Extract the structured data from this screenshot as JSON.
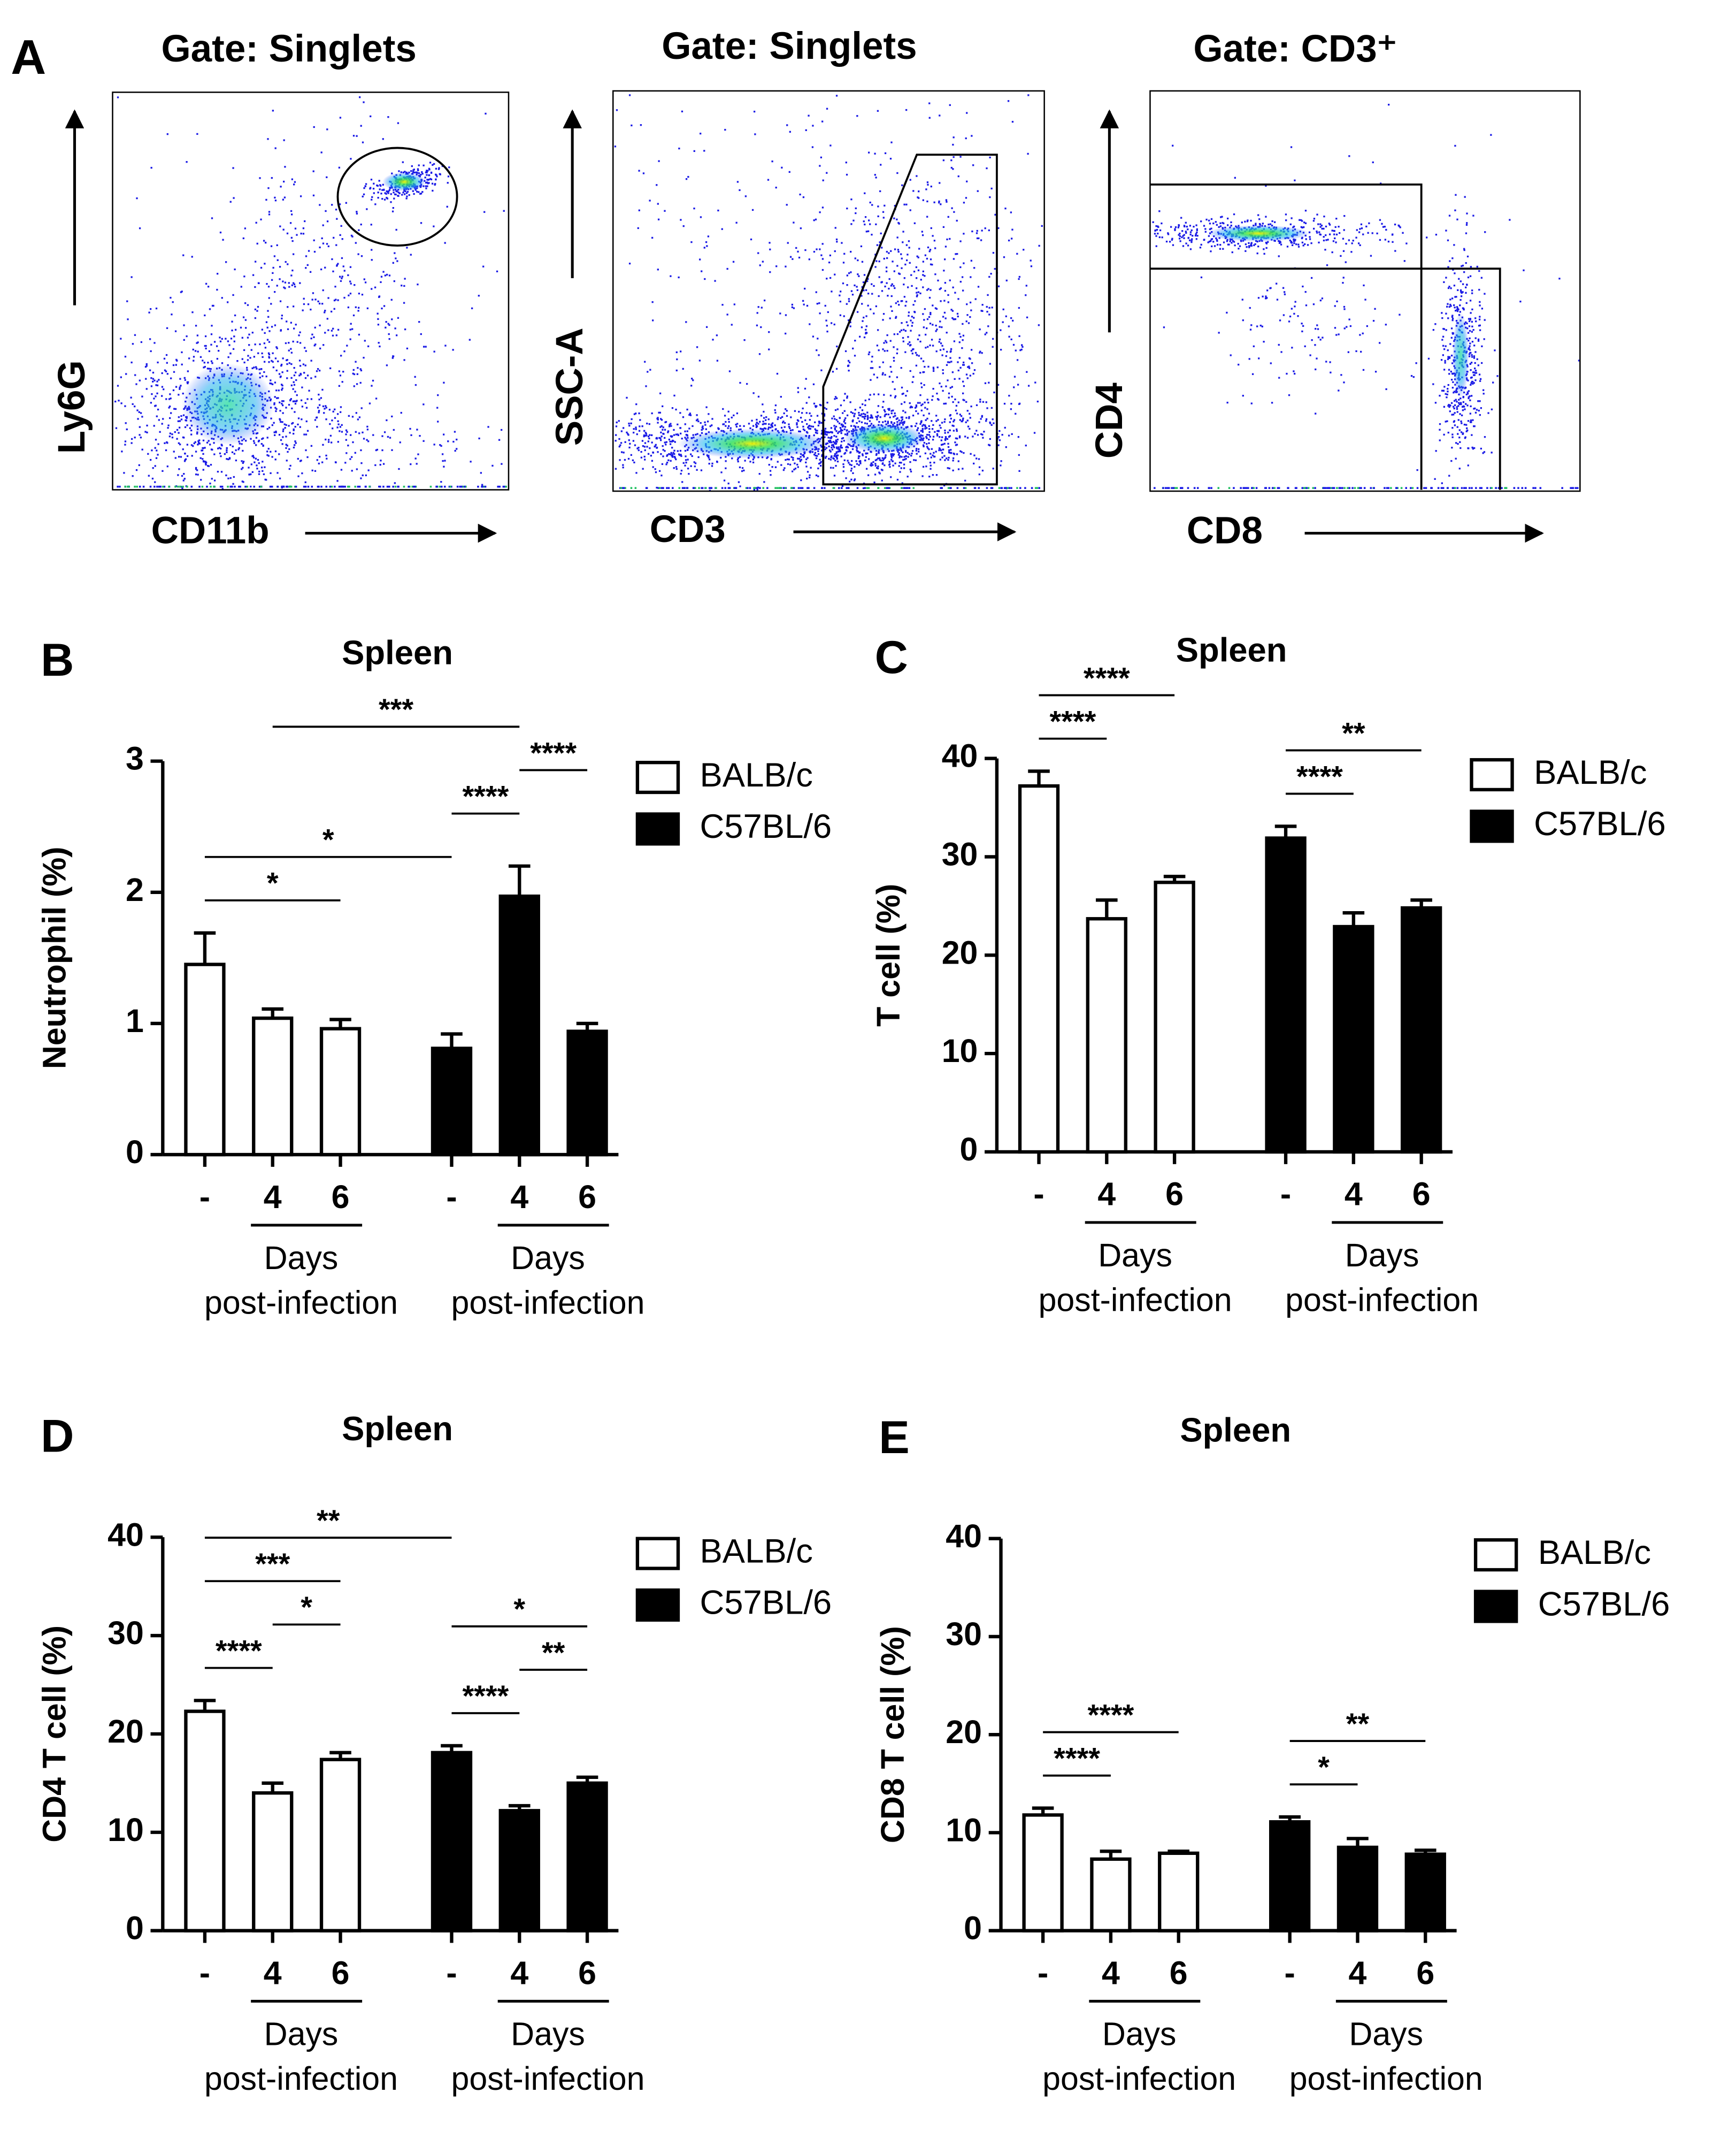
{
  "flow_panel": {
    "label": "A",
    "plots": [
      {
        "gate": "Gate: Singlets",
        "x_label": "CD11b",
        "y_label": "Ly6G"
      },
      {
        "gate": "Gate: Singlets",
        "x_label": "CD3",
        "y_label": "SSC-A"
      },
      {
        "gate": "Gate: CD3⁺",
        "x_label": "CD8",
        "y_label": "CD4"
      }
    ]
  },
  "chart_data": [
    {
      "panel": "B",
      "type": "bar",
      "title": "Spleen",
      "y_label": "Neutrophil (%)",
      "categories": [
        "-",
        "4",
        "6"
      ],
      "group_label": [
        "Days",
        "post-infection"
      ],
      "ylim": [
        0,
        3
      ],
      "yticks": [
        0,
        1,
        2,
        3
      ],
      "series": [
        {
          "name": "BALB/c",
          "color": "#ffffff",
          "values": [
            1.45,
            1.04,
            0.96
          ],
          "errors": [
            0.24,
            0.07,
            0.07
          ]
        },
        {
          "name": "C57BL/6",
          "color": "#000000",
          "values": [
            0.81,
            1.97,
            0.94
          ],
          "errors": [
            0.11,
            0.23,
            0.06
          ]
        }
      ],
      "annotations": [
        {
          "text": "*",
          "bars": [
            0,
            2
          ]
        },
        {
          "text": "*",
          "bars": [
            0,
            3
          ]
        },
        {
          "text": "****",
          "bars": [
            3,
            4
          ]
        },
        {
          "text": "****",
          "bars": [
            4,
            5
          ]
        },
        {
          "text": "***",
          "bars": [
            1,
            4
          ]
        }
      ]
    },
    {
      "panel": "C",
      "type": "bar",
      "title": "Spleen",
      "y_label": "T cell (%)",
      "categories": [
        "-",
        "4",
        "6"
      ],
      "group_label": [
        "Days",
        "post-infection"
      ],
      "ylim": [
        0,
        40
      ],
      "yticks": [
        0,
        10,
        20,
        30,
        40
      ],
      "series": [
        {
          "name": "BALB/c",
          "color": "#ffffff",
          "values": [
            37.2,
            23.7,
            27.4
          ],
          "errors": [
            1.5,
            1.9,
            0.6
          ]
        },
        {
          "name": "C57BL/6",
          "color": "#000000",
          "values": [
            31.9,
            22.9,
            24.8
          ],
          "errors": [
            1.2,
            1.4,
            0.8
          ]
        }
      ],
      "annotations": [
        {
          "text": "****",
          "bars": [
            0,
            1
          ]
        },
        {
          "text": "****",
          "bars": [
            0,
            2
          ]
        },
        {
          "text": "****",
          "bars": [
            3,
            4
          ]
        },
        {
          "text": "**",
          "bars": [
            3,
            5
          ]
        }
      ]
    },
    {
      "panel": "D",
      "type": "bar",
      "title": "Spleen",
      "y_label": "CD4 T cell (%)",
      "categories": [
        "-",
        "4",
        "6"
      ],
      "group_label": [
        "Days",
        "post-infection"
      ],
      "ylim": [
        0,
        40
      ],
      "yticks": [
        0,
        10,
        20,
        30,
        40
      ],
      "series": [
        {
          "name": "BALB/c",
          "color": "#ffffff",
          "values": [
            22.3,
            14.0,
            17.4
          ],
          "errors": [
            1.1,
            1.0,
            0.7
          ]
        },
        {
          "name": "C57BL/6",
          "color": "#000000",
          "values": [
            18.1,
            12.2,
            15.0
          ],
          "errors": [
            0.7,
            0.5,
            0.6
          ]
        }
      ],
      "annotations": [
        {
          "text": "****",
          "bars": [
            0,
            1
          ]
        },
        {
          "text": "*",
          "bars": [
            1,
            2
          ]
        },
        {
          "text": "***",
          "bars": [
            0,
            2
          ]
        },
        {
          "text": "****",
          "bars": [
            3,
            4
          ]
        },
        {
          "text": "**",
          "bars": [
            4,
            5
          ]
        },
        {
          "text": "*",
          "bars": [
            3,
            5
          ]
        },
        {
          "text": "**",
          "bars": [
            0,
            3
          ]
        }
      ]
    },
    {
      "panel": "E",
      "type": "bar",
      "title": "Spleen",
      "y_label": "CD8 T cell (%)",
      "categories": [
        "-",
        "4",
        "6"
      ],
      "group_label": [
        "Days",
        "post-infection"
      ],
      "ylim": [
        0,
        40
      ],
      "yticks": [
        0,
        10,
        20,
        30,
        40
      ],
      "series": [
        {
          "name": "BALB/c",
          "color": "#ffffff",
          "values": [
            11.8,
            7.3,
            7.9
          ],
          "errors": [
            0.7,
            0.8,
            0.2
          ]
        },
        {
          "name": "C57BL/6",
          "color": "#000000",
          "values": [
            11.1,
            8.5,
            7.8
          ],
          "errors": [
            0.5,
            0.9,
            0.4
          ]
        }
      ],
      "annotations": [
        {
          "text": "****",
          "bars": [
            0,
            1
          ]
        },
        {
          "text": "****",
          "bars": [
            0,
            2
          ]
        },
        {
          "text": "*",
          "bars": [
            3,
            4
          ]
        },
        {
          "text": "**",
          "bars": [
            3,
            5
          ]
        }
      ]
    }
  ]
}
